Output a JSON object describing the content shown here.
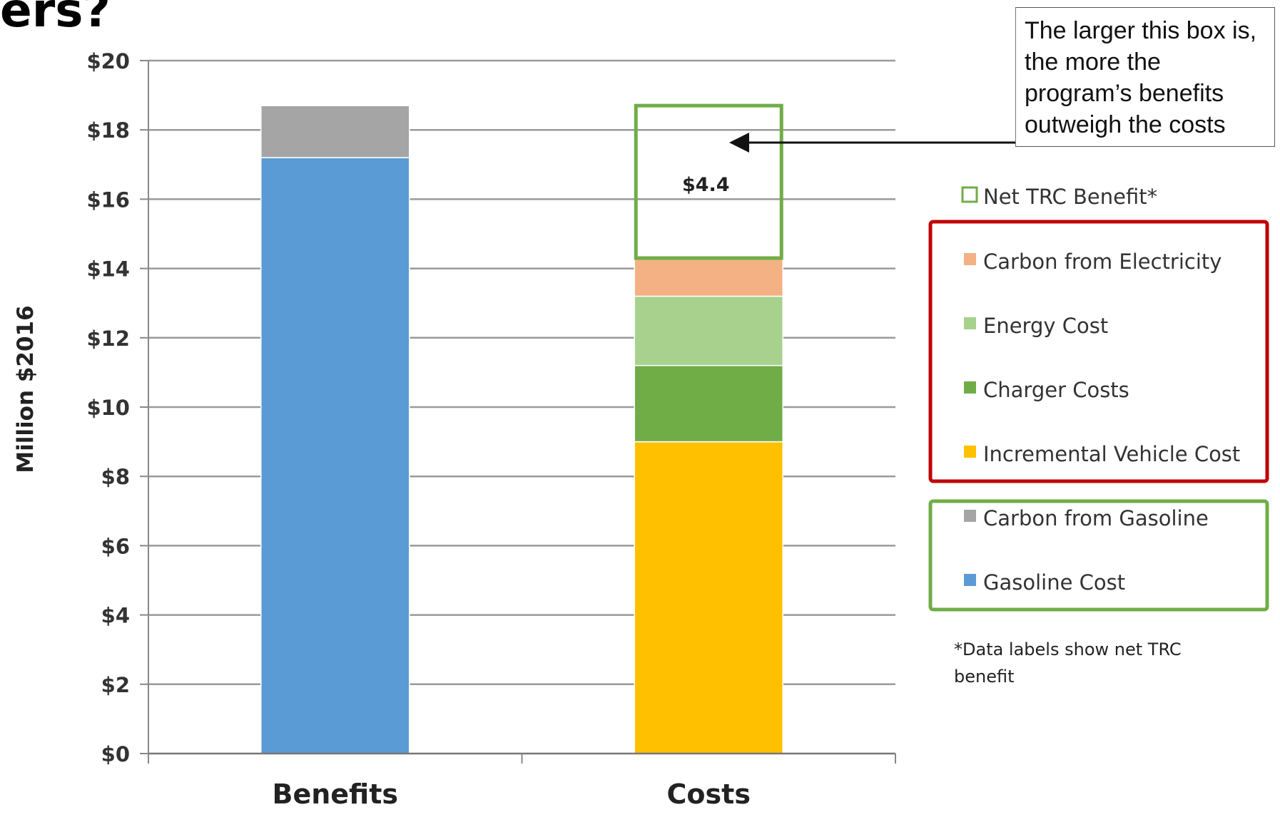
{
  "heading_fragment": "ers?",
  "callout_text": "The larger this box is, the more the program’s benefits outweigh the costs",
  "footnote": "*Data labels show net TRC benefit",
  "chart_data": {
    "type": "bar",
    "stacked": true,
    "categories": [
      "Benefits",
      "Costs"
    ],
    "ylabel": "Million $2016",
    "ylim": [
      0,
      20
    ],
    "ytick_labels": [
      "$0",
      "$2",
      "$4",
      "$6",
      "$8",
      "$10",
      "$12",
      "$14",
      "$16",
      "$18",
      "$20"
    ],
    "grid": true,
    "legend_position": "right",
    "series": [
      {
        "name": "Gasoline Cost",
        "color": "#5B9BD5",
        "values": [
          17.2,
          0
        ]
      },
      {
        "name": "Carbon from Gasoline",
        "color": "#A5A5A5",
        "values": [
          1.5,
          0
        ]
      },
      {
        "name": "Incremental Vehicle Cost",
        "color": "#FFC000",
        "values": [
          0,
          9.0
        ]
      },
      {
        "name": "Charger Costs",
        "color": "#70AD47",
        "values": [
          0,
          2.2
        ]
      },
      {
        "name": "Energy Cost",
        "color": "#A9D18E",
        "values": [
          0,
          2.0
        ]
      },
      {
        "name": "Carbon from Electricity",
        "color": "#F4B183",
        "values": [
          0,
          1.1
        ]
      },
      {
        "name": "Net TRC Benefit*",
        "color": "#70AD47",
        "outline": true,
        "values": [
          0,
          4.4
        ]
      }
    ],
    "data_labels": [
      {
        "category": "Costs",
        "series": "Net TRC Benefit*",
        "text": "$4.4"
      }
    ],
    "legend": {
      "top_item": "Net TRC Benefit*",
      "red_group": [
        "Carbon from Electricity",
        "Energy Cost",
        "Charger Costs",
        "Incremental Vehicle Cost"
      ],
      "green_group": [
        "Carbon from Gasoline",
        "Gasoline Cost"
      ],
      "red_group_color": "#C00000",
      "green_group_color": "#70AD47"
    }
  }
}
